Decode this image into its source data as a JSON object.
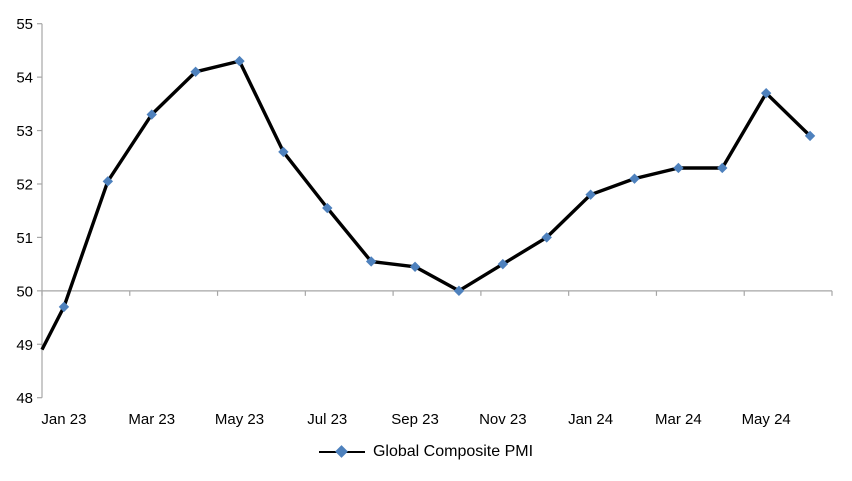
{
  "chart": {
    "title": "",
    "colors": {
      "line": "#000000",
      "marker": "#4E81BD",
      "axis": "#A6A6A6",
      "text": "#000000",
      "background": "#FFFFFF"
    },
    "legend": {
      "label": "Global Composite PMI"
    }
  },
  "chart_data": {
    "type": "line",
    "title": "",
    "xlabel": "",
    "ylabel": "",
    "categories": [
      "Jan 23",
      "Feb 23",
      "Mar 23",
      "Apr 23",
      "May 23",
      "Jun 23",
      "Jul 23",
      "Aug 23",
      "Sep 23",
      "Oct 23",
      "Nov 23",
      "Dec 23",
      "Jan 24",
      "Feb 24",
      "Mar 24",
      "Apr 24",
      "May 24",
      "Jun 24"
    ],
    "series": [
      {
        "name": "Global Composite PMI",
        "values": [
          49.7,
          52.05,
          53.3,
          54.1,
          54.3,
          52.6,
          51.55,
          50.55,
          50.45,
          50.0,
          50.5,
          51.0,
          51.8,
          52.1,
          52.3,
          52.3,
          53.7,
          52.9
        ]
      }
    ],
    "visible_x_tick_labels": [
      "Jan 23",
      "Mar 23",
      "May 23",
      "Jul 23",
      "Sep 23",
      "Nov 23",
      "Jan 24",
      "Mar 24",
      "May 24"
    ],
    "x_label_every": 2,
    "x_tick_every": 2,
    "ylim": [
      48,
      55
    ],
    "y_ticks": [
      48,
      49,
      50,
      51,
      52,
      53,
      54,
      55
    ],
    "x_axis_crosses_at": 50,
    "clipped_lead_in_value_at_axis": 48.9,
    "grid": false,
    "marker_shape": "diamond",
    "legend_position": "bottom-center"
  }
}
